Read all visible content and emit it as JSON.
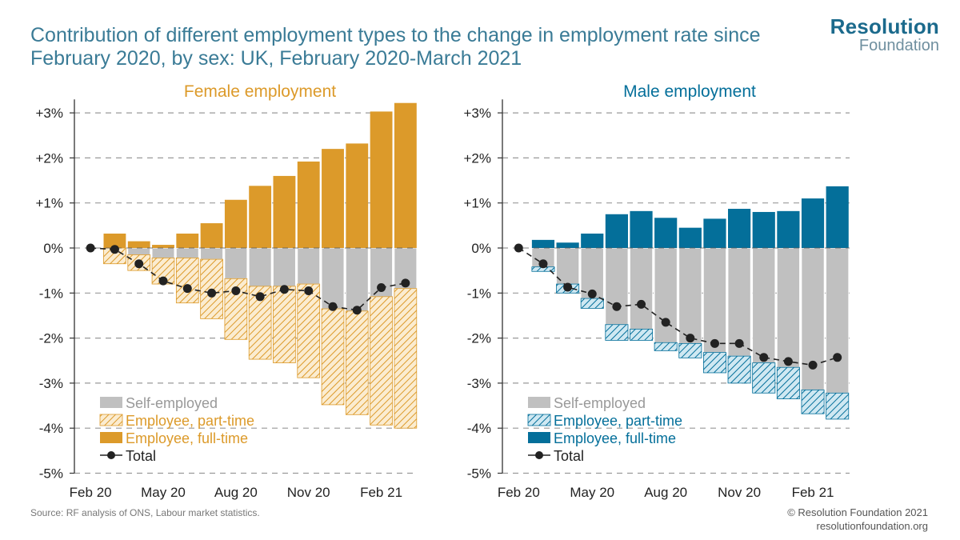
{
  "title": "Contribution of different employment types to the change in employment rate since February 2020, by sex: UK, February 2020-March 2021",
  "logo": {
    "line1": "Resolution",
    "line2": "Foundation"
  },
  "source": "Source:  RF analysis of ONS, Labour market statistics.",
  "copyright": {
    "line1": "© Resolution Foundation 2021",
    "line2": "resolutionfoundation.org"
  },
  "colors": {
    "female_accent": "#dc9a2a",
    "male_accent": "#046f9a",
    "self_employed": "#c0c0c0",
    "total_line": "#222222",
    "title": "#3a7b96"
  },
  "chart_data": [
    {
      "type": "bar",
      "title": "Female employment",
      "stacked": true,
      "categories": [
        "Feb 20",
        "Mar 20",
        "Apr 20",
        "May 20",
        "Jun 20",
        "Jul 20",
        "Aug 20",
        "Sep 20",
        "Oct 20",
        "Nov 20",
        "Dec 20",
        "Jan 21",
        "Feb 21",
        "Mar 21"
      ],
      "x_tick_labels": [
        "Feb 20",
        "May 20",
        "Aug 20",
        "Nov 20",
        "Feb 21"
      ],
      "y_ticks": [
        "+3%",
        "+2%",
        "+1%",
        "0%",
        "-1%",
        "-2%",
        "-3%",
        "-4%",
        "-5%"
      ],
      "ylim": [
        -5,
        3.3
      ],
      "series": [
        {
          "name": "Self-employed",
          "values": [
            0,
            0,
            -0.15,
            -0.22,
            -0.22,
            -0.25,
            -0.68,
            -0.85,
            -0.85,
            -0.8,
            -1.35,
            -1.4,
            -1.08,
            -0.9
          ]
        },
        {
          "name": "Employee, part-time",
          "values": [
            0,
            -0.35,
            -0.35,
            -0.58,
            -1.0,
            -1.32,
            -1.35,
            -1.62,
            -1.7,
            -2.08,
            -2.13,
            -2.3,
            -2.85,
            -3.1
          ]
        },
        {
          "name": "Employee, full-time",
          "values": [
            0,
            0.32,
            0.15,
            0.07,
            0.32,
            0.55,
            1.07,
            1.38,
            1.6,
            1.92,
            2.2,
            2.32,
            3.03,
            3.22
          ]
        },
        {
          "name": "Total",
          "values": [
            0,
            -0.03,
            -0.35,
            -0.73,
            -0.9,
            -1.0,
            -0.95,
            -1.08,
            -0.92,
            -0.95,
            -1.3,
            -1.38,
            -0.88,
            -0.78
          ]
        }
      ],
      "legend": {
        "position": "bottom-left",
        "entries": [
          "Self-employed",
          "Employee, part-time",
          "Employee, full-time",
          "Total"
        ]
      },
      "grid": true
    },
    {
      "type": "bar",
      "title": "Male employment",
      "stacked": true,
      "categories": [
        "Feb 20",
        "Mar 20",
        "Apr 20",
        "May 20",
        "Jun 20",
        "Jul 20",
        "Aug 20",
        "Sep 20",
        "Oct 20",
        "Nov 20",
        "Dec 20",
        "Jan 21",
        "Feb 21",
        "Mar 21"
      ],
      "x_tick_labels": [
        "Feb 20",
        "May 20",
        "Aug 20",
        "Nov 20",
        "Feb 21"
      ],
      "y_ticks": [
        "+3%",
        "+2%",
        "+1%",
        "0%",
        "-1%",
        "-2%",
        "-3%",
        "-4%",
        "-5%"
      ],
      "ylim": [
        -5,
        3.3
      ],
      "series": [
        {
          "name": "Self-employed",
          "values": [
            0,
            -0.42,
            -0.8,
            -1.12,
            -1.7,
            -1.8,
            -2.1,
            -2.12,
            -2.32,
            -2.4,
            -2.55,
            -2.65,
            -3.15,
            -3.22
          ]
        },
        {
          "name": "Employee, part-time",
          "values": [
            0,
            -0.1,
            -0.2,
            -0.22,
            -0.35,
            -0.25,
            -0.18,
            -0.32,
            -0.45,
            -0.6,
            -0.67,
            -0.7,
            -0.53,
            -0.58
          ]
        },
        {
          "name": "Employee, full-time",
          "values": [
            0,
            0.18,
            0.12,
            0.32,
            0.75,
            0.82,
            0.67,
            0.45,
            0.65,
            0.87,
            0.8,
            0.82,
            1.1,
            1.37
          ]
        },
        {
          "name": "Total",
          "values": [
            0,
            -0.35,
            -0.87,
            -1.02,
            -1.3,
            -1.25,
            -1.65,
            -2.0,
            -2.12,
            -2.12,
            -2.43,
            -2.52,
            -2.6,
            -2.43
          ]
        }
      ],
      "legend": {
        "position": "bottom-left",
        "entries": [
          "Self-employed",
          "Employee, part-time",
          "Employee, full-time",
          "Total"
        ]
      },
      "grid": true
    }
  ]
}
